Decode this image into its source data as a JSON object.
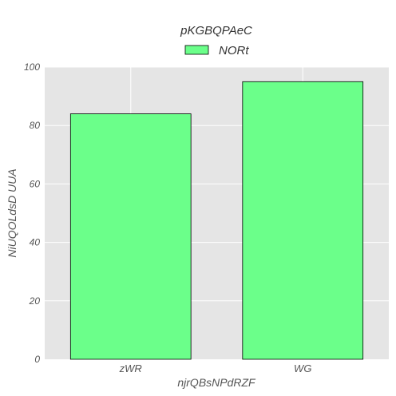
{
  "chart_data": {
    "type": "bar",
    "title": "pKGBQPAeC",
    "xlabel": "njrQBsNPdRZF",
    "ylabel": "NiUQOLdsD UUA",
    "categories": [
      "zWR",
      "WG"
    ],
    "series": [
      {
        "name": "NORt",
        "values": [
          84,
          95
        ],
        "color": "#6bff8a"
      }
    ],
    "ylim": [
      0,
      100
    ],
    "yticks": [
      0,
      20,
      40,
      60,
      80,
      100
    ],
    "grid": true,
    "legend": "top-center",
    "background": "#e5e5e5",
    "gridcolor": "#ffffff",
    "edgecolor": "#000000"
  }
}
